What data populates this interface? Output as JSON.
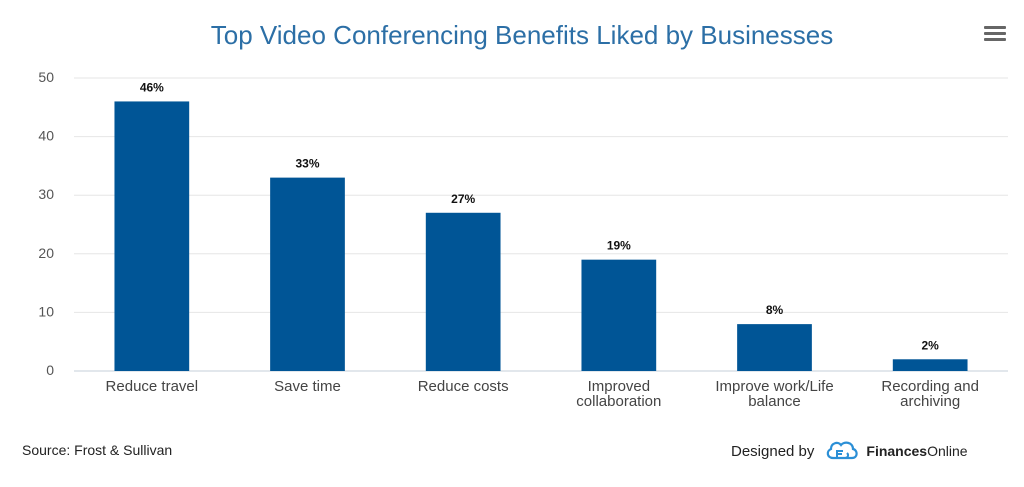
{
  "chart_data": {
    "type": "bar",
    "title": "Top Video Conferencing Benefits Liked by Businesses",
    "categories": [
      "Reduce travel",
      "Save time",
      "Reduce costs",
      "Improved collaboration",
      "Improve work/Life balance",
      "Recording and archiving"
    ],
    "category_lines": [
      [
        "Reduce travel"
      ],
      [
        "Save time"
      ],
      [
        "Reduce costs"
      ],
      [
        "Improved",
        "collaboration"
      ],
      [
        "Improve work/Life",
        "balance"
      ],
      [
        "Recording and",
        "archiving"
      ]
    ],
    "values": [
      46,
      33,
      27,
      19,
      8,
      2
    ],
    "data_labels": [
      "46%",
      "33%",
      "27%",
      "19%",
      "8%",
      "2%"
    ],
    "ylim": [
      0,
      50
    ],
    "yticks": [
      0,
      10,
      20,
      30,
      40,
      50
    ],
    "grid": true,
    "bar_color": "#005596",
    "title_color": "#2c6fa6"
  },
  "footer": {
    "source": "Source: Frost & Sullivan",
    "designed_by": "Designed by",
    "brand_bold": "Finances",
    "brand_light": "Online"
  },
  "menu": {
    "icon": "hamburger-menu-icon"
  }
}
